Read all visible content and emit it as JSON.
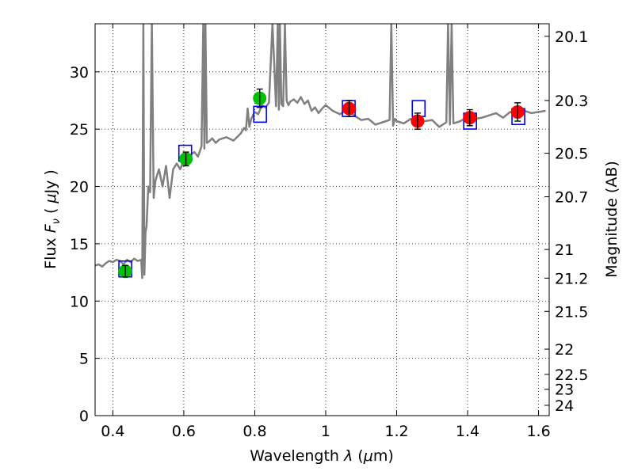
{
  "chart_data": {
    "type": "scatter",
    "xlabel": "Wavelength  λ (μm)",
    "ylabel": "Flux  F_ν  ( μJy )",
    "ylabel_parts": {
      "pre": "Flux  ",
      "var": "F",
      "sub": "ν",
      "mid": "  ( ",
      "unit_greek": "μ",
      "unit": "Jy )"
    },
    "xlabel_parts": {
      "pre": "Wavelength  ",
      "var": "λ",
      "mid": " (",
      "unit_greek": "μ",
      "unit": "m)"
    },
    "y2label": "Magnitude (AB)",
    "xlim": [
      0.35,
      1.63
    ],
    "ylim": [
      0,
      34.2
    ],
    "grid": true,
    "x_ticks": [
      0.4,
      0.6,
      0.8,
      1.0,
      1.2,
      1.4,
      1.6
    ],
    "x_tick_labels": [
      "0.4",
      "0.6",
      "0.8",
      "1",
      "1.2",
      "1.4",
      "1.6"
    ],
    "y_ticks": [
      0,
      5,
      10,
      15,
      20,
      25,
      30
    ],
    "y_tick_labels": [
      "0",
      "5",
      "10",
      "15",
      "20",
      "25",
      "30"
    ],
    "y2_ticks": [
      {
        "label": "20.1",
        "flux": 33.1
      },
      {
        "label": "20.3",
        "flux": 27.5
      },
      {
        "label": "20.5",
        "flux": 22.9
      },
      {
        "label": "20.7",
        "flux": 19.1
      },
      {
        "label": "21",
        "flux": 14.5
      },
      {
        "label": "21.2",
        "flux": 12.0
      },
      {
        "label": "21.5",
        "flux": 9.1
      },
      {
        "label": "22",
        "flux": 5.8
      },
      {
        "label": "22.5",
        "flux": 3.6
      },
      {
        "label": "23",
        "flux": 2.3
      },
      {
        "label": "24",
        "flux": 0.9
      }
    ],
    "model_sed": {
      "color": "#808080",
      "x": [
        0.35,
        0.36,
        0.37,
        0.38,
        0.39,
        0.4,
        0.41,
        0.42,
        0.43,
        0.44,
        0.45,
        0.46,
        0.47,
        0.48,
        0.483,
        0.486,
        0.489,
        0.492,
        0.495,
        0.5,
        0.505,
        0.51,
        0.515,
        0.52,
        0.53,
        0.54,
        0.55,
        0.56,
        0.57,
        0.58,
        0.59,
        0.6,
        0.61,
        0.62,
        0.63,
        0.64,
        0.65,
        0.655,
        0.658,
        0.661,
        0.665,
        0.67,
        0.68,
        0.69,
        0.7,
        0.72,
        0.74,
        0.76,
        0.77,
        0.775,
        0.78,
        0.785,
        0.79,
        0.8,
        0.81,
        0.82,
        0.83,
        0.84,
        0.85,
        0.86,
        0.865,
        0.868,
        0.871,
        0.875,
        0.88,
        0.885,
        0.89,
        0.895,
        0.9,
        0.91,
        0.92,
        0.93,
        0.94,
        0.95,
        0.96,
        0.97,
        0.98,
        0.99,
        1.0,
        1.02,
        1.04,
        1.06,
        1.08,
        1.1,
        1.12,
        1.14,
        1.16,
        1.18,
        1.185,
        1.19,
        1.195,
        1.2,
        1.22,
        1.24,
        1.26,
        1.28,
        1.3,
        1.32,
        1.34,
        1.345,
        1.35,
        1.355,
        1.36,
        1.38,
        1.4,
        1.42,
        1.44,
        1.46,
        1.48,
        1.5,
        1.52,
        1.54,
        1.56,
        1.58,
        1.6,
        1.62
      ],
      "y": [
        13.1,
        13.2,
        13.0,
        13.3,
        13.5,
        13.4,
        13.6,
        13.5,
        13.2,
        13.6,
        13.4,
        13.7,
        13.5,
        13.6,
        12.0,
        34.2,
        12.3,
        16.0,
        16.5,
        20.0,
        19.5,
        34.2,
        19.0,
        20.5,
        21.5,
        20.0,
        21.8,
        19.0,
        21.5,
        22.0,
        21.5,
        22.3,
        22.0,
        22.8,
        23.0,
        22.6,
        23.5,
        34.2,
        23.3,
        34.2,
        23.8,
        23.9,
        24.2,
        23.8,
        24.1,
        24.3,
        24.0,
        24.6,
        25.1,
        24.9,
        26.8,
        25.2,
        25.9,
        26.5,
        26.3,
        27.1,
        26.9,
        27.3,
        34.2,
        27.0,
        34.2,
        26.7,
        34.2,
        27.2,
        27.0,
        34.2,
        27.5,
        27.1,
        27.4,
        27.6,
        27.3,
        27.8,
        27.2,
        27.5,
        26.6,
        26.9,
        26.4,
        26.8,
        27.1,
        26.6,
        26.3,
        26.7,
        26.2,
        25.8,
        25.9,
        25.4,
        25.6,
        25.8,
        34.2,
        25.3,
        25.9,
        25.7,
        25.5,
        25.9,
        25.6,
        25.7,
        25.8,
        25.2,
        25.6,
        34.2,
        25.4,
        34.2,
        25.5,
        25.7,
        26.1,
        25.9,
        26.0,
        26.2,
        26.4,
        26.0,
        26.5,
        26.3,
        26.6,
        26.4,
        26.5,
        26.6
      ]
    },
    "model_photometry": {
      "marker": "open-square",
      "color": "#0000ff",
      "x": [
        0.435,
        0.604,
        0.815,
        1.065,
        1.262,
        1.407,
        1.543
      ],
      "y": [
        12.8,
        22.9,
        26.3,
        26.8,
        26.8,
        25.7,
        26.1
      ]
    },
    "observed_optical": {
      "marker": "filled-circle",
      "color": "#00c000",
      "x": [
        0.435,
        0.606,
        0.814
      ],
      "y": [
        12.6,
        22.4,
        27.7
      ],
      "yerr": [
        0.5,
        0.6,
        0.8
      ]
    },
    "observed_nir": {
      "marker": "filled-circle",
      "color": "#ff0000",
      "x": [
        1.066,
        1.259,
        1.406,
        1.541
      ],
      "y": [
        26.8,
        25.7,
        26.0,
        26.5
      ],
      "yerr": [
        0.7,
        0.7,
        0.7,
        0.8
      ]
    }
  }
}
